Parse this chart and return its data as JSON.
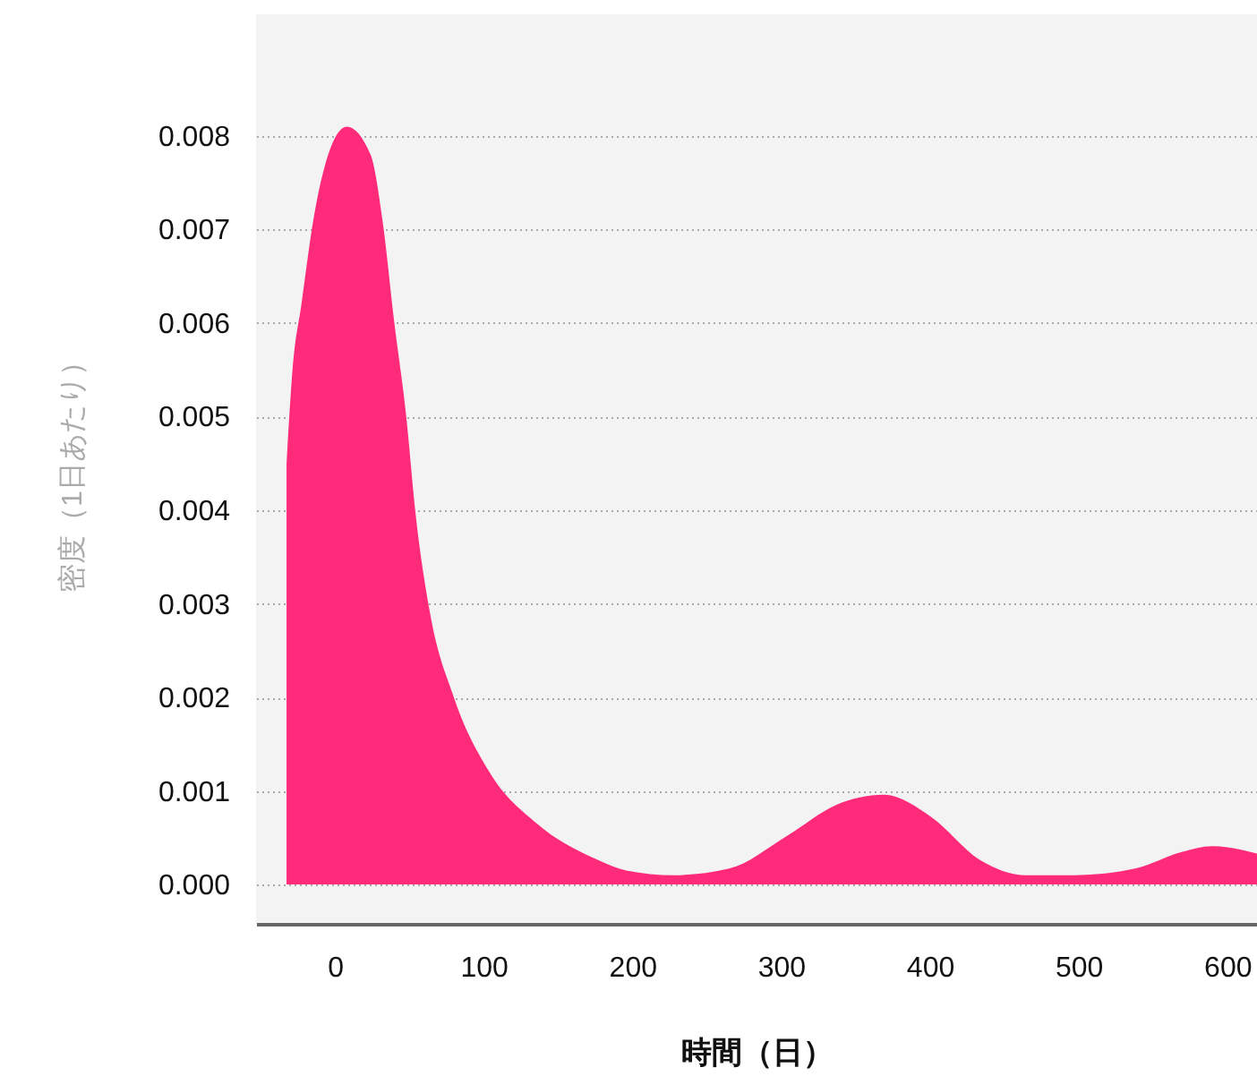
{
  "chart_data": {
    "type": "area",
    "xlabel": "時間（日）",
    "ylabel": "密度（1日あたり）",
    "x": [
      -32.5,
      -28.5,
      -22.5,
      -14.5,
      -4.5,
      8,
      24,
      32,
      40,
      48,
      54,
      64,
      80,
      104,
      136,
      176,
      196,
      228,
      265,
      305,
      337,
      369,
      401,
      433,
      465,
      498,
      538,
      570,
      590,
      610,
      620
    ],
    "series": [
      {
        "color": "#ff2a7a",
        "values": [
          0.0045,
          0.0055,
          0.0062,
          0.0071,
          0.0078,
          0.0081,
          0.0078,
          0.0071,
          0.006,
          0.005,
          0.004,
          0.0029,
          0.002,
          0.0012,
          0.00065,
          0.00027,
          0.00015,
          0.0001,
          0.00017,
          0.00053,
          0.00085,
          0.00096,
          0.00072,
          0.00027,
          0.0001,
          0.0001,
          0.00017,
          0.00035,
          0.00041,
          0.00037,
          0.00033
        ]
      }
    ],
    "xlim": [
      -53,
      620
    ],
    "ylim": [
      -0.00042,
      0.0093
    ],
    "xticks": [
      0,
      100,
      200,
      300,
      400,
      500,
      600
    ],
    "yticks": [
      {
        "value": 0,
        "label": "0.000"
      },
      0.001,
      0.002,
      0.003,
      0.004,
      0.005,
      0.006,
      0.007,
      0.008
    ],
    "grid": "y"
  }
}
